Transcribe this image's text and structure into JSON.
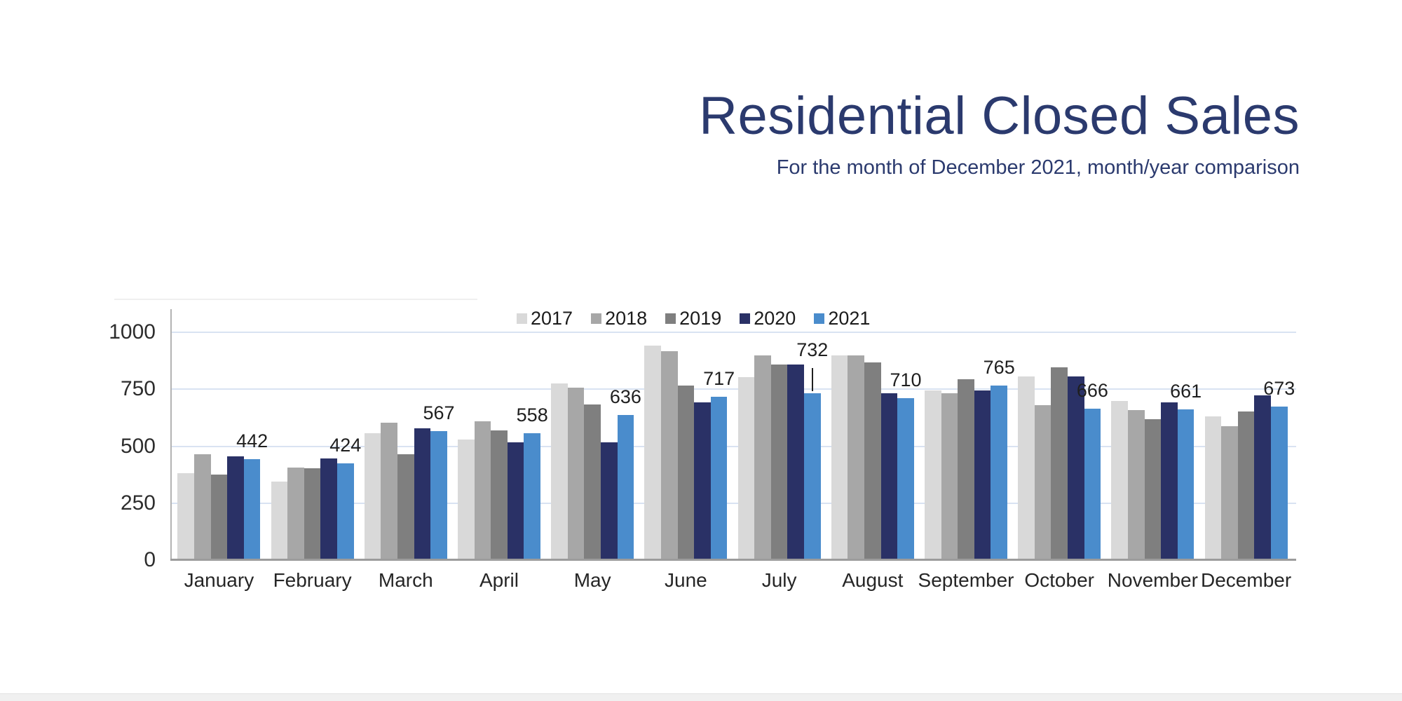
{
  "chart_data": {
    "type": "bar",
    "title": "Residential Closed Sales",
    "subtitle": "For the month of December 2021, month/year comparison",
    "title_color": "#2b3a6e",
    "subtitle_color": "#2b3a6e",
    "categories": [
      "January",
      "February",
      "March",
      "April",
      "May",
      "June",
      "July",
      "August",
      "September",
      "October",
      "November",
      "December"
    ],
    "series": [
      {
        "name": "2017",
        "color": "#d9d9d9",
        "values": [
          383,
          344,
          556,
          528,
          776,
          941,
          804,
          899,
          745,
          807,
          699,
          632
        ]
      },
      {
        "name": "2018",
        "color": "#a7a7a7",
        "values": [
          466,
          405,
          604,
          610,
          757,
          917,
          899,
          897,
          733,
          681,
          660,
          589
        ]
      },
      {
        "name": "2019",
        "color": "#7f7f7f",
        "values": [
          374,
          402,
          466,
          570,
          684,
          767,
          859,
          868,
          795,
          847,
          620,
          653
        ]
      },
      {
        "name": "2020",
        "color": "#2a3166",
        "values": [
          456,
          445,
          580,
          518,
          518,
          693,
          858,
          733,
          744,
          806,
          693,
          724
        ]
      },
      {
        "name": "2021",
        "color": "#4a8ccc",
        "values": [
          442,
          424,
          567,
          558,
          636,
          717,
          732,
          710,
          765,
          666,
          661,
          673
        ]
      }
    ],
    "data_labels": {
      "series": "2021",
      "values": [
        442,
        424,
        567,
        558,
        636,
        717,
        732,
        710,
        765,
        666,
        661,
        673
      ],
      "leader_line_category": "July"
    },
    "yticks": [
      0,
      250,
      500,
      750,
      1000
    ],
    "ylim": [
      0,
      1050
    ],
    "grid": "horizontal",
    "grid_color": "#d9e3f2",
    "axis_color": "#9c9c9c",
    "legend_position": "top-center",
    "legend_labels": [
      "2017",
      "2018",
      "2019",
      "2020",
      "2021"
    ]
  }
}
